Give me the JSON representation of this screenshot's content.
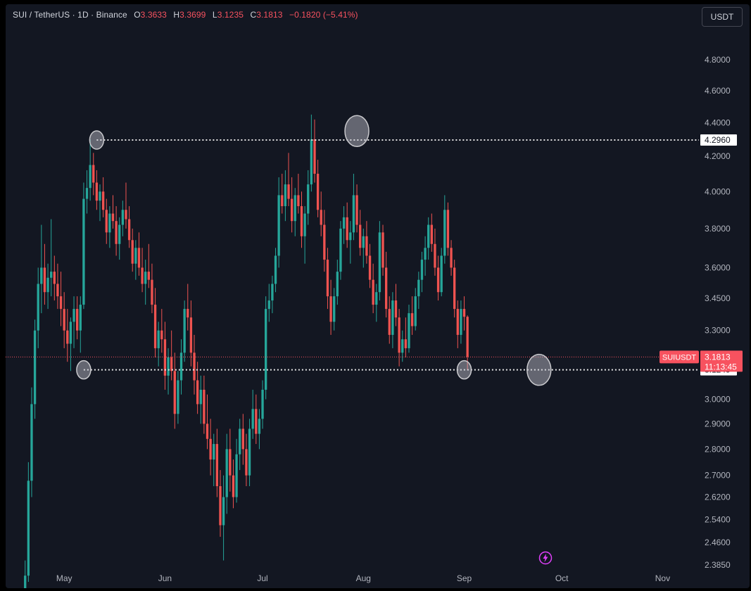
{
  "header": {
    "symbol": "SUI / TetherUS · 1D · Binance",
    "open_label": "O",
    "open": "3.3633",
    "high_label": "H",
    "high": "3.3699",
    "low_label": "L",
    "low": "3.1235",
    "close_label": "C",
    "close": "3.1813",
    "change": "−0.1820 (−5.41%)"
  },
  "currency_button": "USDT",
  "price_tag": {
    "symbol": "SUIUSDT",
    "price": "3.1813",
    "countdown": "11:13:45"
  },
  "level_labels": [
    "4.2960",
    "3.1249"
  ],
  "colors": {
    "background": "#131722",
    "up": "#26a69a",
    "down": "#ef5350",
    "axis_text": "#b2b5be",
    "price_tag": "#f7525f",
    "marker": "#d1d4dc"
  },
  "icons": {
    "flash": "lightning-bolt-icon"
  },
  "chart_data": {
    "type": "candlestick",
    "scale": "log",
    "ylim": [
      2.385,
      4.9
    ],
    "y_ticks": [
      4.8,
      4.6,
      4.4,
      4.2,
      4.0,
      3.8,
      3.6,
      3.45,
      3.3,
      3.0,
      2.9,
      2.8,
      2.7,
      2.62,
      2.54,
      2.46,
      2.385
    ],
    "y_tick_labels": [
      "4.8000",
      "4.6000",
      "4.4000",
      "4.2000",
      "4.0000",
      "3.8000",
      "3.6000",
      "3.4500",
      "3.3000",
      "3.0000",
      "2.9000",
      "2.8000",
      "2.7000",
      "2.6200",
      "2.5400",
      "2.4600",
      "2.3850"
    ],
    "x_tick_labels": [
      "May",
      "Jun",
      "Jul",
      "Aug",
      "Sep",
      "Oct",
      "Nov"
    ],
    "x_tick_dates": [
      "2024-05-01",
      "2024-06-01",
      "2024-07-01",
      "2024-08-01",
      "2024-09-01",
      "2024-10-01",
      "2024-11-01"
    ],
    "x_range": [
      "2024-04-13",
      "2024-11-10"
    ],
    "horizontal_levels": [
      4.296,
      3.1249
    ],
    "last_price": 3.1813,
    "marked_points": [
      {
        "date": "2024-05-11",
        "price": 4.296
      },
      {
        "date": "2024-05-07",
        "price": 3.1249
      },
      {
        "date": "2024-07-30",
        "price": 4.35
      },
      {
        "date": "2024-09-01",
        "price": 3.1249
      },
      {
        "date": "2024-09-24",
        "price": 3.1249
      }
    ],
    "start_date": "2024-04-19",
    "candles": [
      [
        2.3,
        2.4,
        2.28,
        2.35
      ],
      [
        2.35,
        2.75,
        2.33,
        2.68
      ],
      [
        2.68,
        3.05,
        2.62,
        2.98
      ],
      [
        2.98,
        3.35,
        2.92,
        3.3
      ],
      [
        3.3,
        3.6,
        3.22,
        3.52
      ],
      [
        3.52,
        3.82,
        3.38,
        3.6
      ],
      [
        3.6,
        3.72,
        3.42,
        3.48
      ],
      [
        3.48,
        3.62,
        3.4,
        3.55
      ],
      [
        3.55,
        3.85,
        3.46,
        3.58
      ],
      [
        3.58,
        3.66,
        3.44,
        3.52
      ],
      [
        3.52,
        3.62,
        3.4,
        3.46
      ],
      [
        3.46,
        3.58,
        3.32,
        3.4
      ],
      [
        3.4,
        3.48,
        3.22,
        3.3
      ],
      [
        3.3,
        3.4,
        3.16,
        3.24
      ],
      [
        3.24,
        3.36,
        3.12,
        3.34
      ],
      [
        3.34,
        3.46,
        3.22,
        3.4
      ],
      [
        3.4,
        3.46,
        3.26,
        3.3
      ],
      [
        3.3,
        3.46,
        3.2,
        3.42
      ],
      [
        3.42,
        4.05,
        3.4,
        3.96
      ],
      [
        3.96,
        4.12,
        3.88,
        4.02
      ],
      [
        4.02,
        4.3,
        3.95,
        4.15
      ],
      [
        4.15,
        4.22,
        3.98,
        4.05
      ],
      [
        4.05,
        4.12,
        3.9,
        3.95
      ],
      [
        3.95,
        4.04,
        3.84,
        4.0
      ],
      [
        4.0,
        4.08,
        3.86,
        3.9
      ],
      [
        3.9,
        3.96,
        3.72,
        3.78
      ],
      [
        3.78,
        3.92,
        3.7,
        3.88
      ],
      [
        3.88,
        3.98,
        3.8,
        3.84
      ],
      [
        3.84,
        3.92,
        3.66,
        3.72
      ],
      [
        3.72,
        3.86,
        3.64,
        3.82
      ],
      [
        3.82,
        3.95,
        3.76,
        3.9
      ],
      [
        3.9,
        4.05,
        3.8,
        3.85
      ],
      [
        3.85,
        3.92,
        3.7,
        3.74
      ],
      [
        3.74,
        3.8,
        3.58,
        3.62
      ],
      [
        3.62,
        3.74,
        3.54,
        3.7
      ],
      [
        3.7,
        3.78,
        3.56,
        3.6
      ],
      [
        3.6,
        3.7,
        3.48,
        3.52
      ],
      [
        3.52,
        3.64,
        3.42,
        3.58
      ],
      [
        3.58,
        3.72,
        3.5,
        3.54
      ],
      [
        3.54,
        3.62,
        3.38,
        3.42
      ],
      [
        3.42,
        3.5,
        3.18,
        3.22
      ],
      [
        3.22,
        3.34,
        3.14,
        3.3
      ],
      [
        3.3,
        3.4,
        3.2,
        3.26
      ],
      [
        3.26,
        3.34,
        3.04,
        3.1
      ],
      [
        3.1,
        3.22,
        3.02,
        3.18
      ],
      [
        3.18,
        3.3,
        3.08,
        3.12
      ],
      [
        3.12,
        3.2,
        2.88,
        2.94
      ],
      [
        2.94,
        3.12,
        2.9,
        3.08
      ],
      [
        3.08,
        3.26,
        3.02,
        3.2
      ],
      [
        3.2,
        3.44,
        3.16,
        3.4
      ],
      [
        3.4,
        3.52,
        3.3,
        3.36
      ],
      [
        3.36,
        3.44,
        3.14,
        3.2
      ],
      [
        3.2,
        3.28,
        3.02,
        3.08
      ],
      [
        3.08,
        3.16,
        2.94,
        2.98
      ],
      [
        2.98,
        3.1,
        2.9,
        3.04
      ],
      [
        3.04,
        3.1,
        2.86,
        2.9
      ],
      [
        2.9,
        3.02,
        2.8,
        2.84
      ],
      [
        2.84,
        2.92,
        2.7,
        2.76
      ],
      [
        2.76,
        2.86,
        2.66,
        2.82
      ],
      [
        2.82,
        2.88,
        2.62,
        2.66
      ],
      [
        2.66,
        2.72,
        2.48,
        2.52
      ],
      [
        2.52,
        2.7,
        2.4,
        2.62
      ],
      [
        2.62,
        2.86,
        2.56,
        2.8
      ],
      [
        2.8,
        2.88,
        2.64,
        2.7
      ],
      [
        2.7,
        2.76,
        2.58,
        2.62
      ],
      [
        2.62,
        2.84,
        2.6,
        2.78
      ],
      [
        2.78,
        2.92,
        2.72,
        2.88
      ],
      [
        2.88,
        2.94,
        2.74,
        2.8
      ],
      [
        2.8,
        2.86,
        2.66,
        2.7
      ],
      [
        2.7,
        2.92,
        2.66,
        2.88
      ],
      [
        2.88,
        3.04,
        2.84,
        2.96
      ],
      [
        2.96,
        3.02,
        2.82,
        2.86
      ],
      [
        2.86,
        2.96,
        2.8,
        2.92
      ],
      [
        2.92,
        3.08,
        2.88,
        3.04
      ],
      [
        3.04,
        3.46,
        3.0,
        3.4
      ],
      [
        3.4,
        3.52,
        3.34,
        3.44
      ],
      [
        3.44,
        3.56,
        3.38,
        3.52
      ],
      [
        3.52,
        3.7,
        3.48,
        3.66
      ],
      [
        3.66,
        4.08,
        3.6,
        3.98
      ],
      [
        3.98,
        4.1,
        3.88,
        3.92
      ],
      [
        3.92,
        4.12,
        3.84,
        4.04
      ],
      [
        4.04,
        4.22,
        3.92,
        3.96
      ],
      [
        3.96,
        4.08,
        3.78,
        3.84
      ],
      [
        3.84,
        4.02,
        3.76,
        3.98
      ],
      [
        3.98,
        4.1,
        3.88,
        3.92
      ],
      [
        3.92,
        4.0,
        3.7,
        3.76
      ],
      [
        3.76,
        3.92,
        3.62,
        3.88
      ],
      [
        3.88,
        4.12,
        3.82,
        4.04
      ],
      [
        4.04,
        4.45,
        4.0,
        4.3
      ],
      [
        4.3,
        4.42,
        4.05,
        4.1
      ],
      [
        4.1,
        4.18,
        3.86,
        3.9
      ],
      [
        3.9,
        4.0,
        3.76,
        3.82
      ],
      [
        3.82,
        3.9,
        3.58,
        3.64
      ],
      [
        3.64,
        3.7,
        3.4,
        3.46
      ],
      [
        3.46,
        3.54,
        3.28,
        3.34
      ],
      [
        3.34,
        3.5,
        3.3,
        3.46
      ],
      [
        3.46,
        3.64,
        3.42,
        3.58
      ],
      [
        3.58,
        3.84,
        3.54,
        3.8
      ],
      [
        3.8,
        3.92,
        3.72,
        3.86
      ],
      [
        3.86,
        3.94,
        3.7,
        3.74
      ],
      [
        3.74,
        3.84,
        3.62,
        3.78
      ],
      [
        3.78,
        4.1,
        3.74,
        3.98
      ],
      [
        3.98,
        4.04,
        3.78,
        3.82
      ],
      [
        3.82,
        3.9,
        3.66,
        3.7
      ],
      [
        3.7,
        3.8,
        3.6,
        3.76
      ],
      [
        3.76,
        3.84,
        3.62,
        3.66
      ],
      [
        3.66,
        3.72,
        3.5,
        3.54
      ],
      [
        3.54,
        3.62,
        3.38,
        3.42
      ],
      [
        3.42,
        3.52,
        3.34,
        3.48
      ],
      [
        3.48,
        3.84,
        3.44,
        3.78
      ],
      [
        3.78,
        3.82,
        3.56,
        3.6
      ],
      [
        3.6,
        3.68,
        3.36,
        3.4
      ],
      [
        3.4,
        3.46,
        3.24,
        3.28
      ],
      [
        3.28,
        3.48,
        3.22,
        3.44
      ],
      [
        3.44,
        3.52,
        3.32,
        3.36
      ],
      [
        3.36,
        3.4,
        3.14,
        3.2
      ],
      [
        3.2,
        3.3,
        3.16,
        3.26
      ],
      [
        3.26,
        3.36,
        3.18,
        3.22
      ],
      [
        3.22,
        3.42,
        3.2,
        3.38
      ],
      [
        3.38,
        3.46,
        3.28,
        3.32
      ],
      [
        3.32,
        3.5,
        3.3,
        3.46
      ],
      [
        3.46,
        3.58,
        3.4,
        3.54
      ],
      [
        3.54,
        3.68,
        3.48,
        3.64
      ],
      [
        3.64,
        3.76,
        3.56,
        3.7
      ],
      [
        3.7,
        3.86,
        3.64,
        3.82
      ],
      [
        3.82,
        3.88,
        3.68,
        3.72
      ],
      [
        3.72,
        3.8,
        3.56,
        3.6
      ],
      [
        3.6,
        3.66,
        3.44,
        3.48
      ],
      [
        3.48,
        3.7,
        3.46,
        3.66
      ],
      [
        3.66,
        3.98,
        3.62,
        3.9
      ],
      [
        3.9,
        3.94,
        3.66,
        3.7
      ],
      [
        3.7,
        3.74,
        3.56,
        3.6
      ],
      [
        3.6,
        3.64,
        3.36,
        3.4
      ],
      [
        3.4,
        3.44,
        3.22,
        3.28
      ],
      [
        3.28,
        3.44,
        3.24,
        3.4
      ],
      [
        3.4,
        3.46,
        3.3,
        3.3633
      ],
      [
        3.3633,
        3.3699,
        3.1235,
        3.1813
      ]
    ]
  }
}
